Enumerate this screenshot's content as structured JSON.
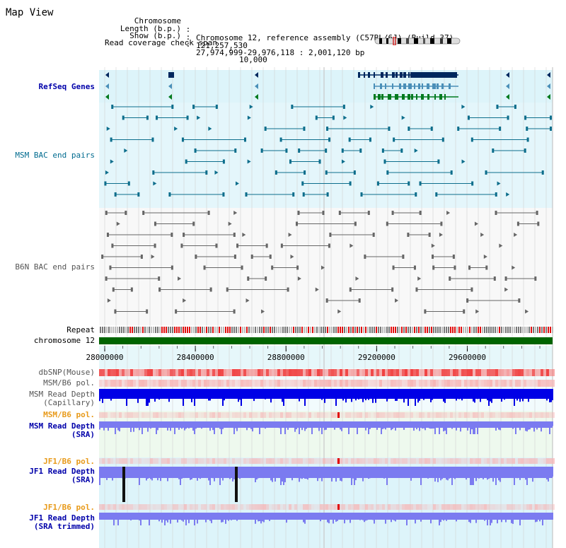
{
  "header": {
    "title": "Map View"
  },
  "info": {
    "rows": [
      {
        "key": "Chromosome",
        "value": "Chromosome 12, reference assembly (C57BL/6J) (Build 37)"
      },
      {
        "key": "Length (b.p.)",
        "value": "121,257,530"
      },
      {
        "key": "Show (b.p.)",
        "value": "27,974,999-29,976,118 : 2,001,120 bp"
      },
      {
        "key": "Read coverage check span",
        "value": "10,000"
      }
    ]
  },
  "region": {
    "start": 27974999,
    "end": 29976118
  },
  "axis": {
    "ticks": [
      {
        "value": 28000000,
        "label": "28000000"
      },
      {
        "value": 28400000,
        "label": "28400000"
      },
      {
        "value": 28800000,
        "label": "28800000"
      },
      {
        "value": 29200000,
        "label": "29200000"
      },
      {
        "value": 29600000,
        "label": "29600000"
      }
    ]
  },
  "tracks": [
    {
      "id": "refseq",
      "label": "RefSeq Genes",
      "color": "#0000aa"
    },
    {
      "id": "msm-bac",
      "label": "MSM BAC end pairs",
      "color": "#006b8f"
    },
    {
      "id": "b6n-bac",
      "label": "B6N BAC end pairs",
      "color": "#555555"
    },
    {
      "id": "repeat",
      "label": "Repeat",
      "color": "#000000"
    },
    {
      "id": "chromosome",
      "label": "chromosome 12",
      "color": "#000000"
    },
    {
      "id": "dbsnp",
      "label": "dbSNP(Mouse)",
      "color": "#555555"
    },
    {
      "id": "msm-b6-pol-1",
      "label": "MSM/B6 pol.",
      "color": "#555555"
    },
    {
      "id": "msm-depth-cap",
      "label": "MSM Read Depth\n(Capillary)",
      "color": "#555555"
    },
    {
      "id": "msm-b6-pol-2",
      "label": "MSM/B6 pol.",
      "color": "#e89a1a"
    },
    {
      "id": "msm-depth-sra",
      "label": "MSM Read Depth\n(SRA)",
      "color": "#0000aa"
    },
    {
      "id": "jf1-b6-pol-1",
      "label": "JF1/B6 pol.",
      "color": "#e89a1a"
    },
    {
      "id": "jf1-depth-sra",
      "label": "JF1 Read Depth\n(SRA)",
      "color": "#0000aa"
    },
    {
      "id": "jf1-b6-pol-2",
      "label": "JF1/B6 pol.",
      "color": "#e89a1a"
    },
    {
      "id": "jf1-depth-trim",
      "label": "JF1 Read Depth\n(SRA trimmed)",
      "color": "#0000aa"
    }
  ],
  "colors": {
    "refseq_dark": "#00275e",
    "refseq_mid": "#4a8fb8",
    "refseq_green": "#007a1e",
    "msm_bac": "#0d6e8c",
    "b6n_bac": "#666666",
    "chromosome_bar": "#006400",
    "depth_dark": "#0000e6",
    "depth_light": "#7b7bf0",
    "snp_red": "#f04040",
    "pol_pink": "#f7b5b5",
    "grid": "#cfcfcf",
    "bg_cyan": "#ddf4fa",
    "bg_green": "#eef9ee"
  }
}
